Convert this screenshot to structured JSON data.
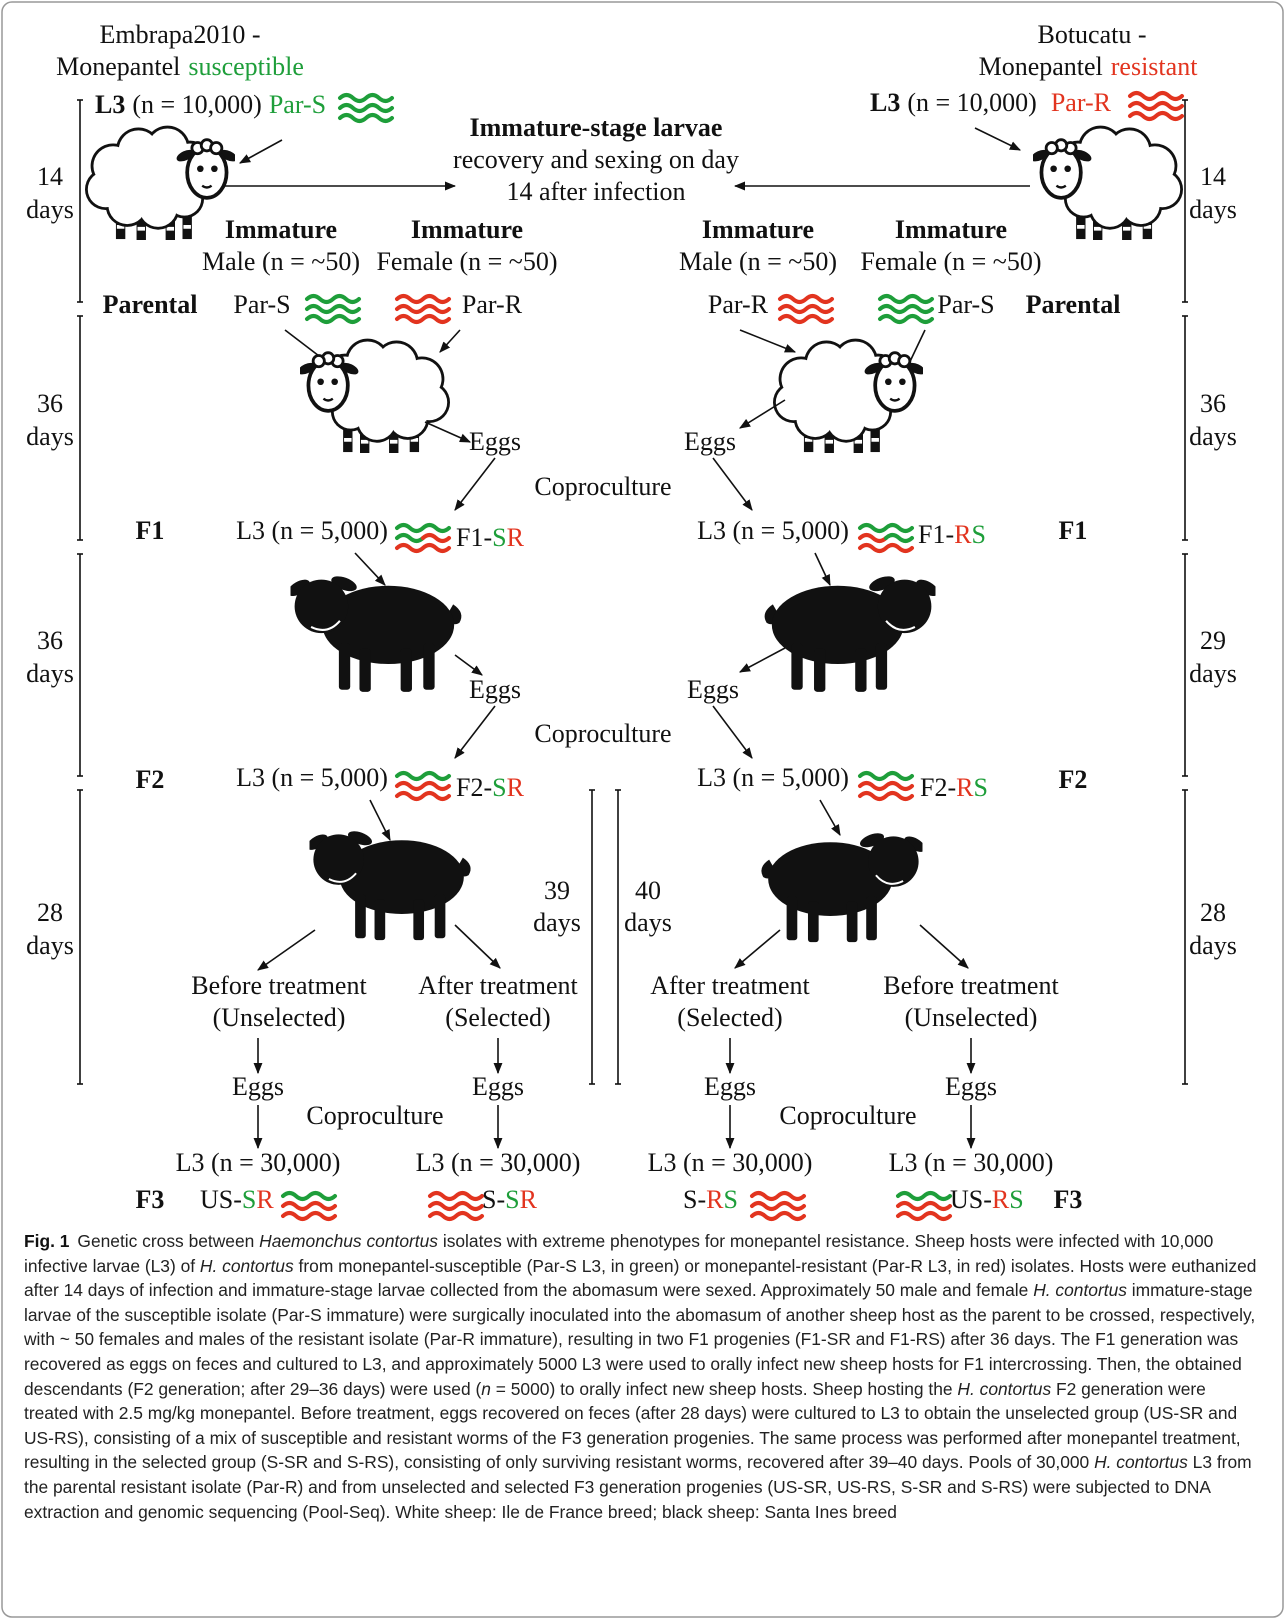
{
  "header": {
    "left": {
      "line1": "Embrapa2010 -",
      "line2": "Monepantel",
      "status": "susceptible"
    },
    "right": {
      "line1": "Botucatu -",
      "line2": "Monepantel",
      "status": "resistant"
    }
  },
  "inoculum": {
    "left": {
      "stage": "L3",
      "count": "(n = 10,000)",
      "isolate": "Par-S"
    },
    "right": {
      "stage": "L3",
      "count": "(n = 10,000)",
      "isolate": "Par-R"
    }
  },
  "center_note": [
    "Immature-stage larvae",
    "recovery and sexing on day",
    "14 after infection"
  ],
  "immature": {
    "heading": "Immature",
    "male": "Male (n = ~50)",
    "female": "Female (n = ~50)"
  },
  "parental": {
    "label": "Parental",
    "susceptible": "Par-S",
    "resistant": "Par-R"
  },
  "flow": {
    "eggs": "Eggs",
    "coproculture": "Coproculture",
    "l3_f1": "L3 (n = 5,000)",
    "l3_f3": "L3 (n = 30,000)"
  },
  "generations": [
    "F1",
    "F2",
    "F3"
  ],
  "strains": {
    "f1_left": {
      "prefix": "F1-",
      "a": "S",
      "b": "R"
    },
    "f1_right": {
      "prefix": "F1-",
      "a": "R",
      "b": "S"
    },
    "f2_left": {
      "prefix": "F2-",
      "a": "S",
      "b": "R"
    },
    "f2_right": {
      "prefix": "F2-",
      "a": "R",
      "b": "S"
    },
    "us_sr": {
      "prefix": "US-",
      "a": "S",
      "b": "R"
    },
    "s_sr": {
      "prefix": "S-",
      "a": "S",
      "b": "R"
    },
    "s_rs": {
      "prefix": "S-",
      "a": "R",
      "b": "S"
    },
    "us_rs": {
      "prefix": "US-",
      "a": "R",
      "b": "S"
    }
  },
  "treatment": {
    "before": "Before treatment",
    "unselected": "(Unselected)",
    "after": "After treatment",
    "selected": "(Selected)"
  },
  "timeline": {
    "left": [
      "14",
      "36",
      "36",
      "28"
    ],
    "right": [
      "14",
      "36",
      "29",
      "28"
    ],
    "middle": [
      "39",
      "40"
    ],
    "unit": "days"
  },
  "caption": {
    "label": "Fig. 1",
    "segments": [
      {
        "text": "Genetic cross between ",
        "italic": false
      },
      {
        "text": "Haemonchus contortus",
        "italic": true
      },
      {
        "text": " isolates with extreme phenotypes for monepantel resistance. Sheep hosts were infected with 10,000 infective larvae (L3) of ",
        "italic": false
      },
      {
        "text": "H. contortus",
        "italic": true
      },
      {
        "text": " from monepantel-susceptible (Par-S L3, in green) or monepantel-resistant (Par-R L3, in red) isolates. Hosts were euthanized after 14 days of infection and immature-stage larvae collected from the abomasum were sexed. Approximately 50 male and female ",
        "italic": false
      },
      {
        "text": "H. contortus",
        "italic": true
      },
      {
        "text": " immature-stage larvae of the susceptible isolate (Par-S immature) were surgically inoculated into the abomasum of another sheep host as the parent to be crossed, respectively, with ~ 50 females and males of the resistant isolate (Par-R immature), resulting in two F1 progenies (F1-SR and F1-RS) after 36 days. The F1 generation was recovered as eggs on feces and cultured to L3, and approximately 5000 L3 were used to orally infect new sheep hosts for F1 intercrossing. Then, the obtained descendants (F2 generation; after 29–36 days) were used (",
        "italic": false
      },
      {
        "text": "n",
        "italic": true
      },
      {
        "text": " = 5000) to orally infect new sheep hosts. Sheep hosting the ",
        "italic": false
      },
      {
        "text": "H. contortus",
        "italic": true
      },
      {
        "text": " F2 generation were treated with 2.5 mg/kg monepantel. Before treatment, eggs recovered on feces (after 28 days) were cultured to L3 to obtain the unselected group (US-SR and US-RS), consisting of a mix of susceptible and resistant worms of the F3 generation progenies. The same process was performed after monepantel treatment, resulting in the selected group (S-SR and S-RS), consisting of only surviving resistant worms, recovered after 39–40 days. Pools of 30,000 ",
        "italic": false
      },
      {
        "text": "H. contortus",
        "italic": true
      },
      {
        "text": " L3 from the parental resistant isolate (Par-R) and from unselected and selected F3 generation progenies (US-SR, US-RS, S-SR and S-RS) were subjected to DNA extraction and genomic sequencing (Pool-Seq). White sheep: Ile de France breed; black sheep: Santa Ines breed",
        "italic": false
      }
    ]
  }
}
